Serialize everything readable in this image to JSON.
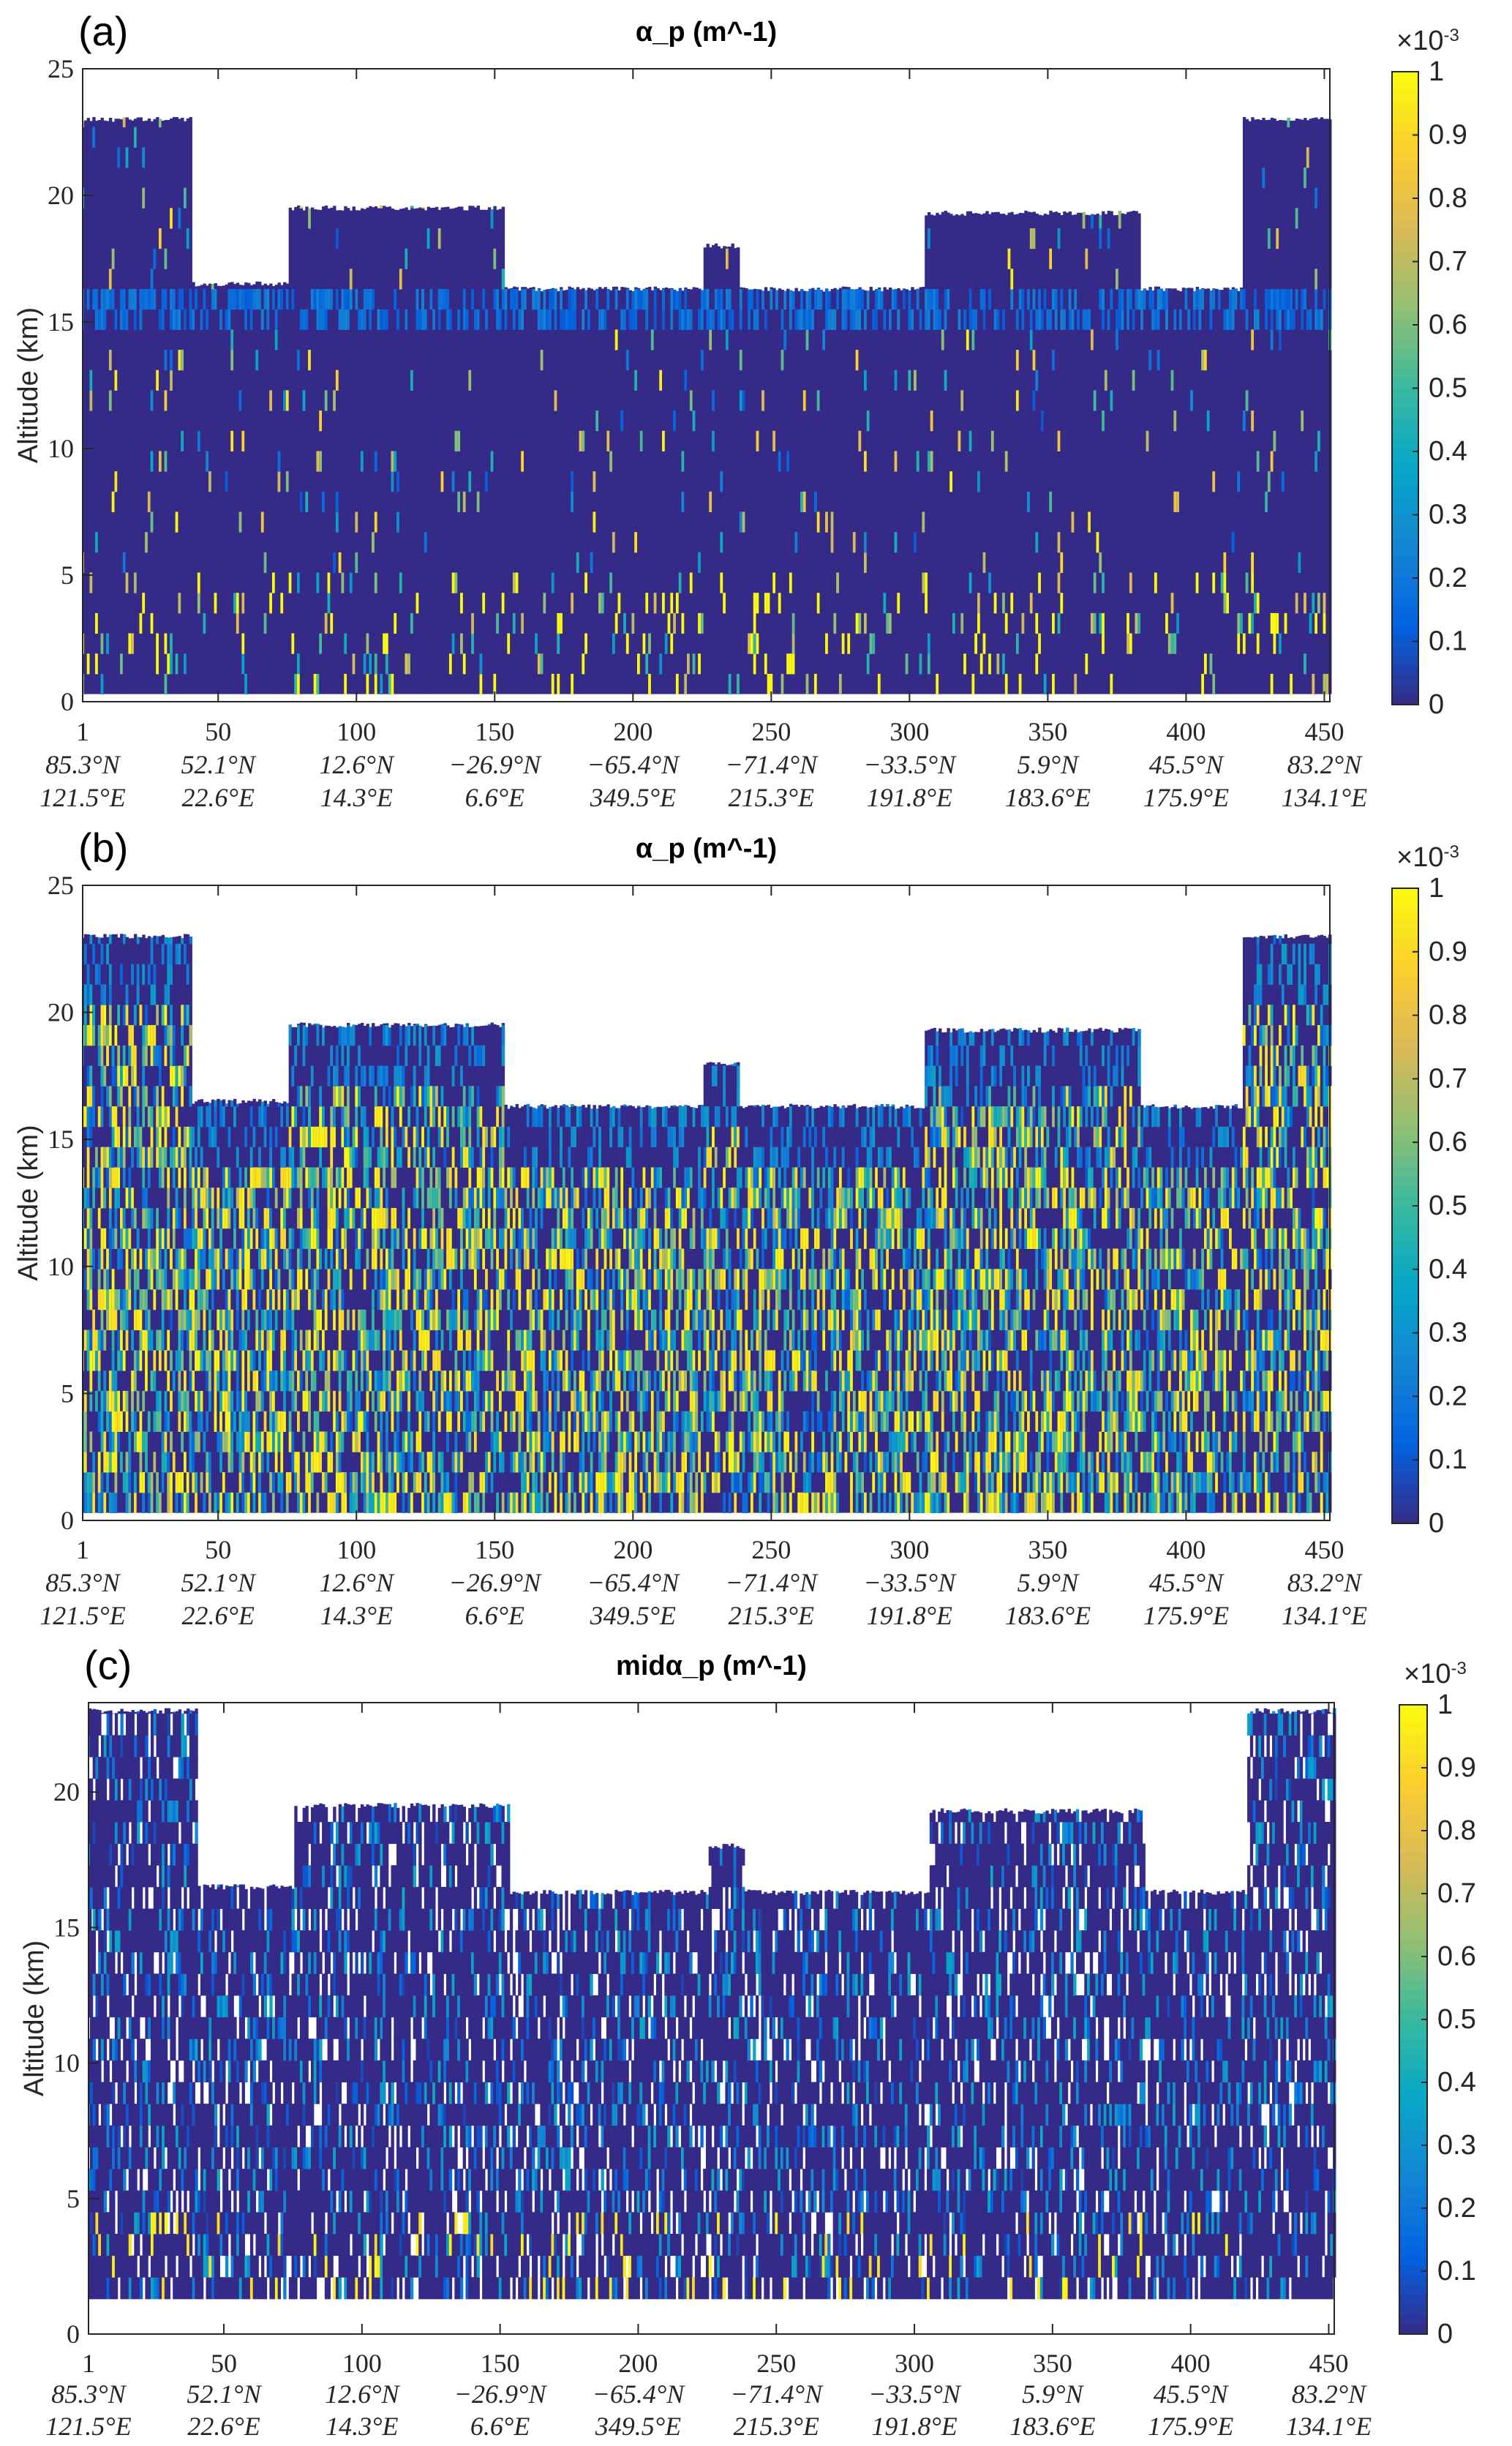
{
  "chart_data": [
    {
      "type": "heatmap",
      "panel_label": "(a)",
      "title": "α_p (m^-1)",
      "title_main": "α",
      "title_sub": "p",
      "title_unit": "(m",
      "title_exp": "-1",
      "title_close": ")",
      "ylabel": "Altitude (km)",
      "ylim": [
        0,
        25
      ],
      "xlim": [
        1,
        452
      ],
      "yticks": [
        "0",
        "5",
        "10",
        "15",
        "20",
        "25"
      ],
      "colorbar": {
        "min": 0,
        "max": 1,
        "scale_label": "×10",
        "scale_exp": "-3",
        "ticks": [
          "0",
          "0.1",
          "0.2",
          "0.3",
          "0.4",
          "0.5",
          "0.6",
          "0.7",
          "0.8",
          "0.9",
          "1"
        ]
      },
      "style": "sparse",
      "bottom_km": 0.3
    },
    {
      "type": "heatmap",
      "panel_label": "(b)",
      "title": "α_p (m^-1)",
      "title_main": "α",
      "title_sub": "p",
      "title_unit": "(m",
      "title_exp": "-1",
      "title_close": ")",
      "ylabel": "Altitude (km)",
      "ylim": [
        0,
        25
      ],
      "xlim": [
        1,
        452
      ],
      "yticks": [
        "0",
        "5",
        "10",
        "15",
        "20",
        "25"
      ],
      "colorbar": {
        "min": 0,
        "max": 1,
        "scale_label": "×10",
        "scale_exp": "-3",
        "ticks": [
          "0",
          "0.1",
          "0.2",
          "0.3",
          "0.4",
          "0.5",
          "0.6",
          "0.7",
          "0.8",
          "0.9",
          "1"
        ]
      },
      "style": "dense",
      "bottom_km": 0.3
    },
    {
      "type": "heatmap",
      "panel_label": "(c)",
      "title": "midα_p (m^-1)",
      "title_main": "midα",
      "title_sub": "p",
      "title_unit": "(m",
      "title_exp": "-1",
      "title_close": ")",
      "ylabel": "Altitude (km)",
      "ylim": [
        0,
        23.3
      ],
      "xlim": [
        1,
        452
      ],
      "yticks": [
        "0",
        "5",
        "10",
        "15",
        "20"
      ],
      "colorbar": {
        "min": 0,
        "max": 1,
        "scale_label": "×10",
        "scale_exp": "-3",
        "ticks": [
          "0",
          "0.1",
          "0.2",
          "0.3",
          "0.4",
          "0.5",
          "0.6",
          "0.7",
          "0.8",
          "0.9",
          "1"
        ]
      },
      "style": "gappy",
      "bottom_km": 1.3
    }
  ],
  "xticks": [
    {
      "x": 1,
      "label": "1",
      "lat": "85.3°N",
      "lon": "121.5°E"
    },
    {
      "x": 50,
      "label": "50",
      "lat": "52.1°N",
      "lon": "22.6°E"
    },
    {
      "x": 100,
      "label": "100",
      "lat": "12.6°N",
      "lon": "14.3°E"
    },
    {
      "x": 150,
      "label": "150",
      "lat": "−26.9°N",
      "lon": "6.6°E"
    },
    {
      "x": 200,
      "label": "200",
      "lat": "−65.4°N",
      "lon": "349.5°E"
    },
    {
      "x": 250,
      "label": "250",
      "lat": "−71.4°N",
      "lon": "215.3°E"
    },
    {
      "x": 300,
      "label": "300",
      "lat": "−33.5°N",
      "lon": "191.8°E"
    },
    {
      "x": 350,
      "label": "350",
      "lat": "5.9°N",
      "lon": "183.6°E"
    },
    {
      "x": 400,
      "label": "400",
      "lat": "45.5°N",
      "lon": "175.9°E"
    },
    {
      "x": 450,
      "label": "450",
      "lat": "83.2°N",
      "lon": "134.1°E"
    }
  ],
  "profile_top_km": [
    [
      1,
      40,
      23
    ],
    [
      41,
      75,
      16.5
    ],
    [
      76,
      153,
      19.5
    ],
    [
      154,
      225,
      16.3
    ],
    [
      226,
      238,
      18
    ],
    [
      239,
      305,
      16.3
    ],
    [
      306,
      383,
      19.3
    ],
    [
      384,
      420,
      16.3
    ],
    [
      421,
      452,
      23
    ]
  ],
  "colormap": [
    "#352a87",
    "#0363e1",
    "#1485d4",
    "#06a7c6",
    "#38b99e",
    "#92bf73",
    "#d9ba56",
    "#fcce2e",
    "#f9fb0e"
  ]
}
